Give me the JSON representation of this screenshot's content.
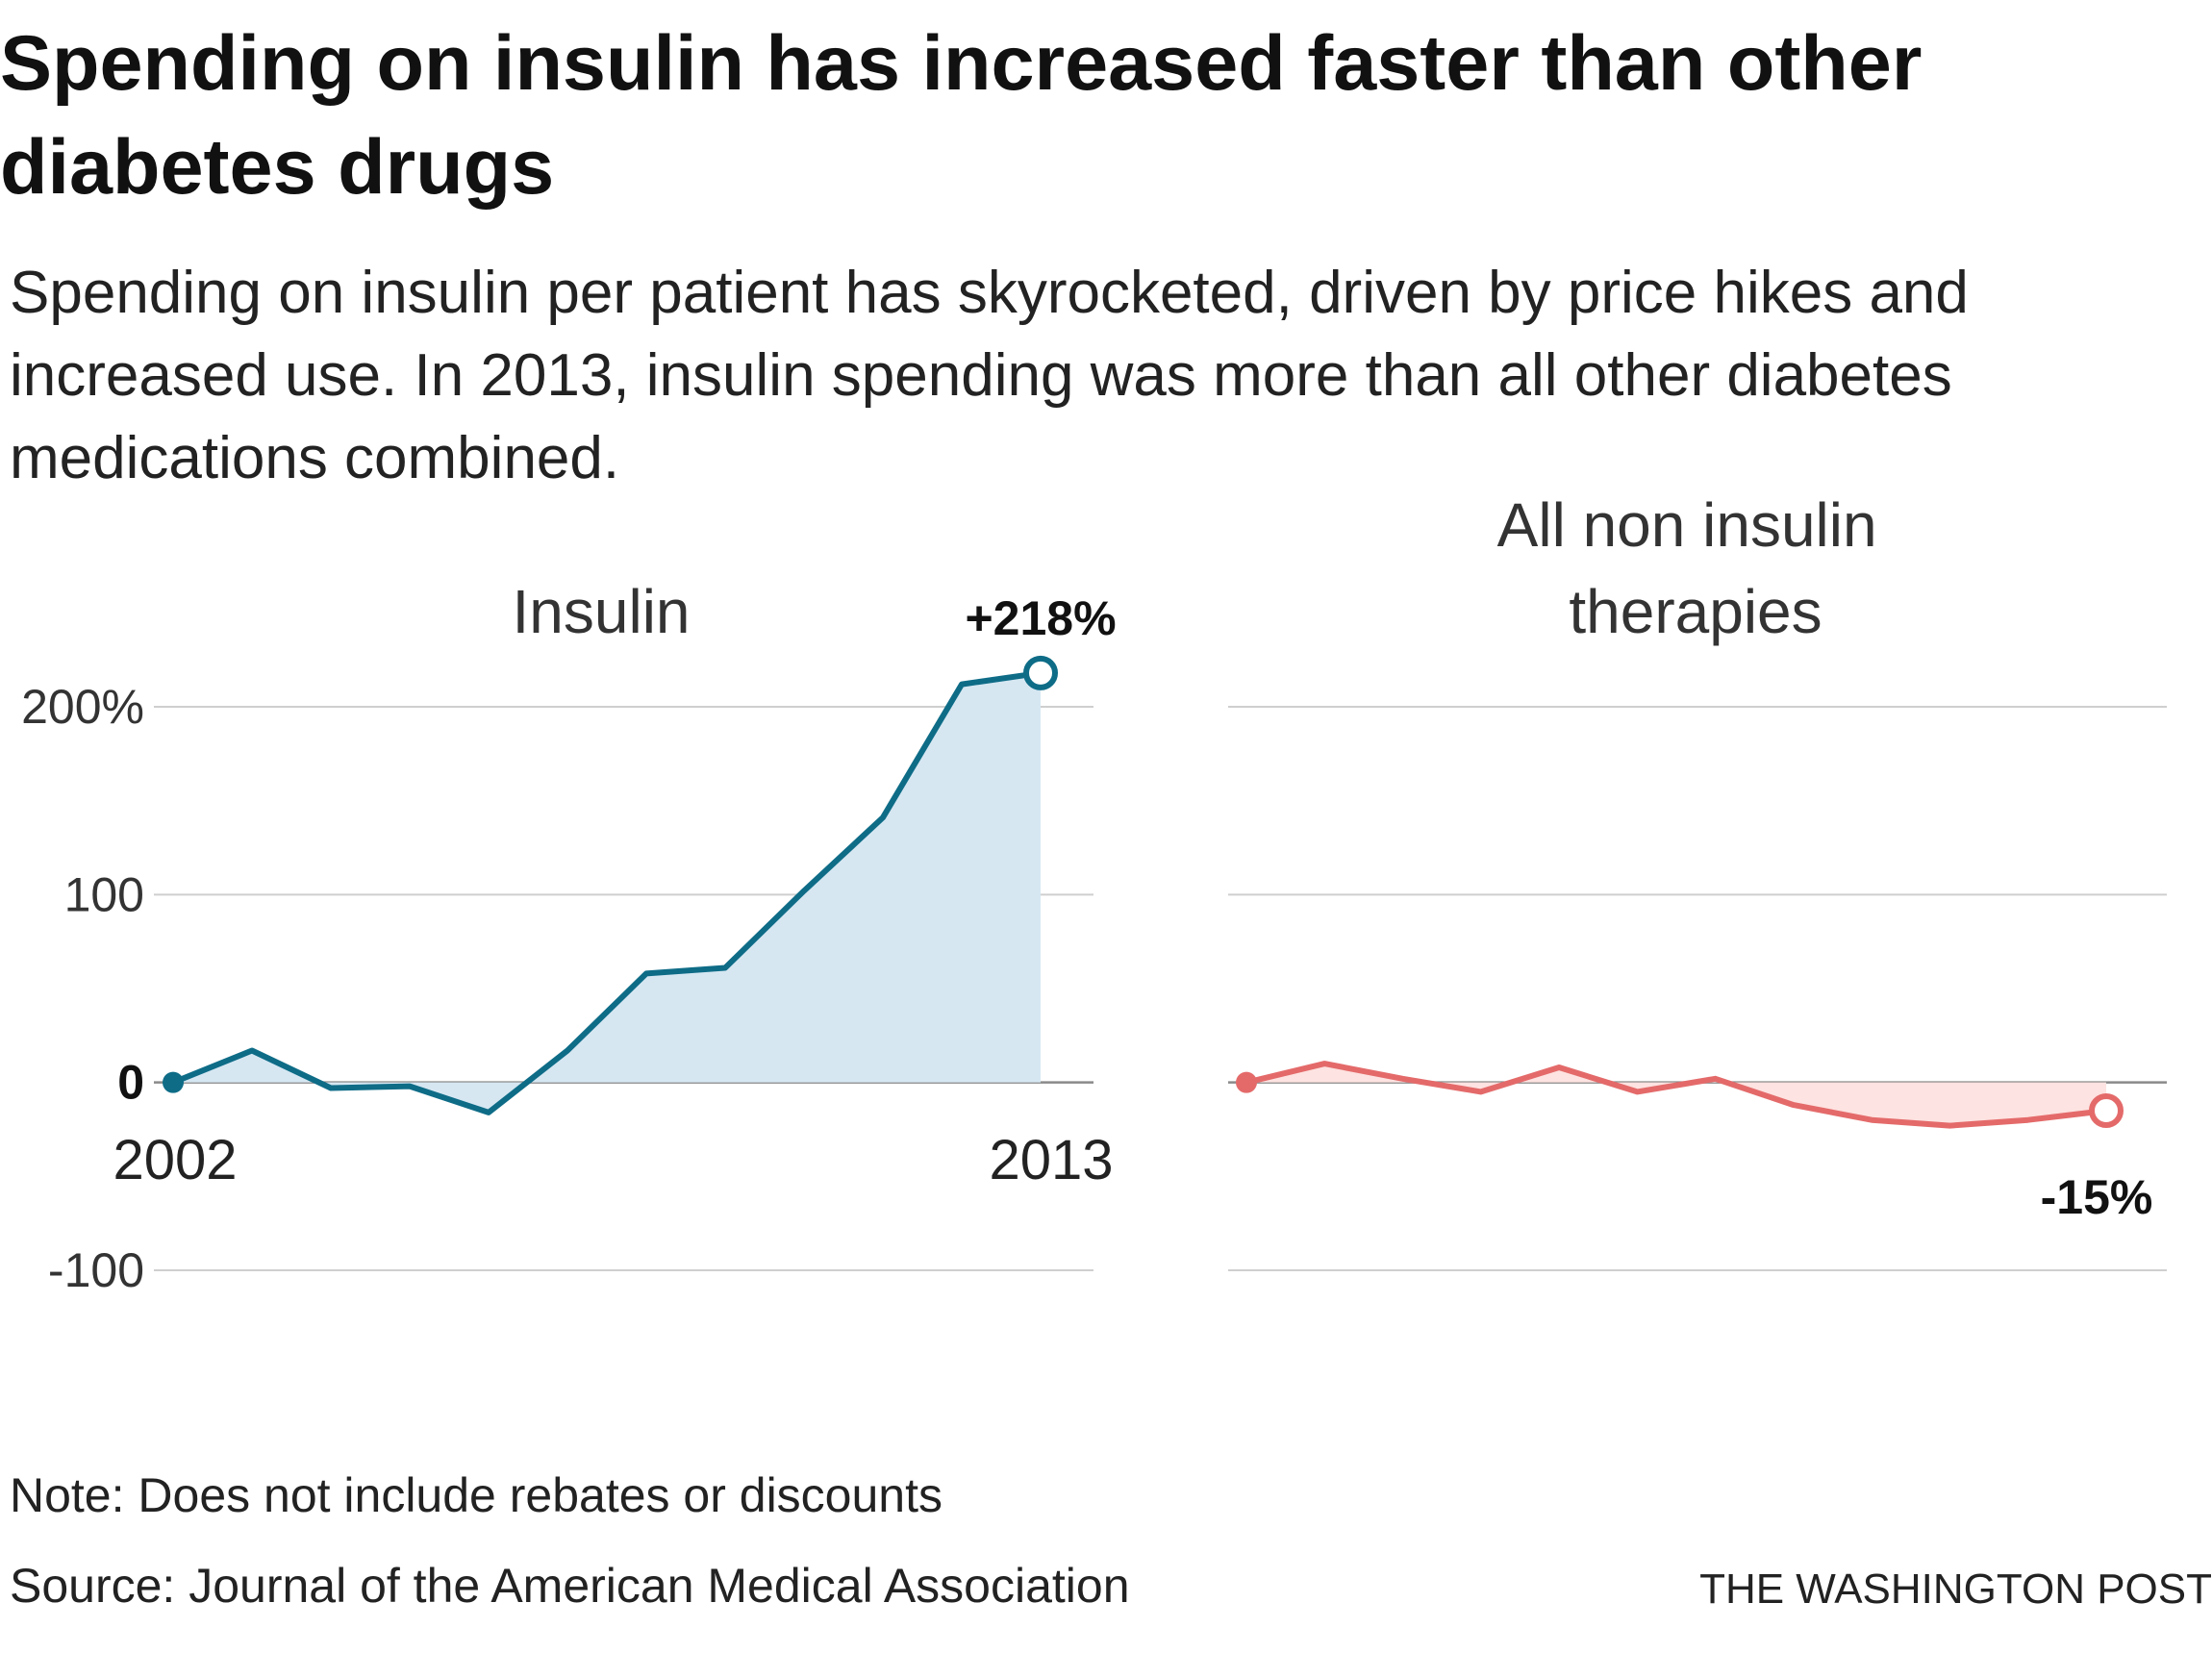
{
  "title": "Spending on insulin has increased faster than other diabetes drugs",
  "subtitle": "Spending on insulin per patient has skyrocketed, driven by price hikes and increased use. In 2013, insulin spending was more than all other diabetes medications combined.",
  "chart_data": [
    {
      "type": "area",
      "title": "Insulin",
      "x": [
        2002,
        2003,
        2004,
        2005,
        2006,
        2007,
        2008,
        2009,
        2010,
        2011,
        2012,
        2013
      ],
      "values": [
        0,
        17,
        -3,
        -2,
        -16,
        17,
        58,
        61,
        102,
        141,
        212,
        218
      ],
      "end_label": "+218%",
      "x_tick_labels": [
        "2002",
        "2013"
      ],
      "y_tick_labels": [
        "200%",
        "100",
        "0",
        "-100"
      ],
      "y_ticks": [
        200,
        100,
        0,
        -100
      ],
      "ylim": [
        -100,
        200
      ],
      "color": "#0e6c87",
      "fill": "#d6e7f2"
    },
    {
      "type": "area",
      "title": "All non insulin therapies",
      "x": [
        2002,
        2003,
        2004,
        2005,
        2006,
        2007,
        2008,
        2009,
        2010,
        2011,
        2012,
        2013
      ],
      "values": [
        0,
        10,
        2,
        -5,
        8,
        -5,
        2,
        -12,
        -20,
        -23,
        -20,
        -15
      ],
      "end_label": "-15%",
      "ylim": [
        -100,
        200
      ],
      "color": "#e46a6a",
      "fill": "#fde3e1"
    }
  ],
  "footer": {
    "note": "Note: Does not include rebates or discounts",
    "source": "Source: Journal of the American Medical Association",
    "credit": "THE WASHINGTON POST"
  }
}
